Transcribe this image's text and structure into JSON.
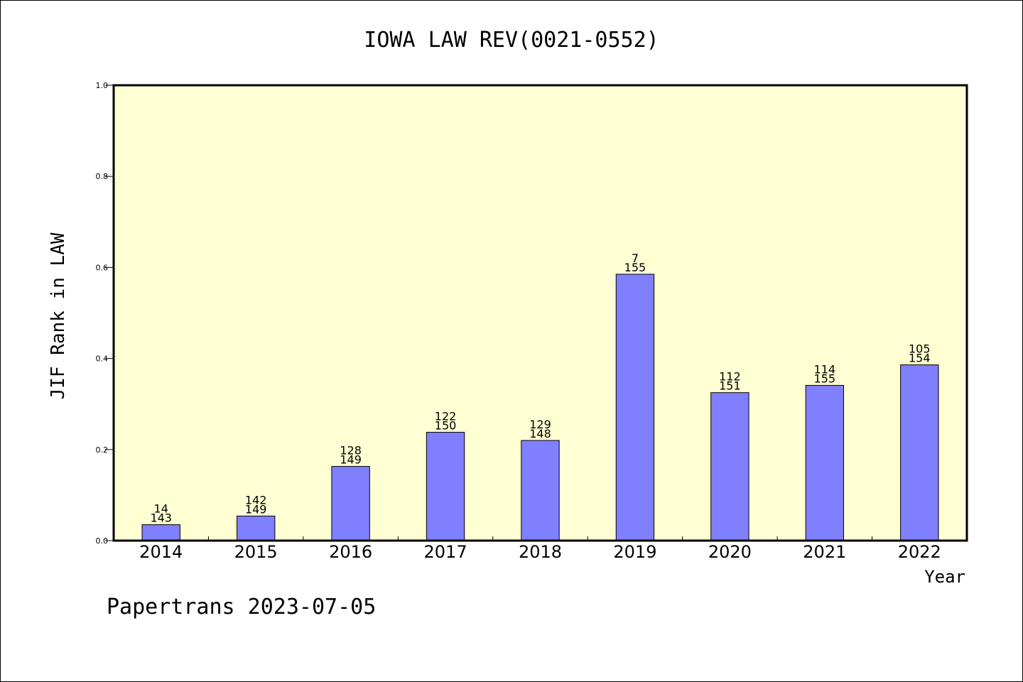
{
  "chart_data": {
    "type": "bar",
    "title": "IOWA LAW REV(0021-0552)",
    "xlabel": "Year",
    "ylabel": "JIF Rank in LAW",
    "ylim": [
      0,
      1.0
    ],
    "yticks": [
      "0.0",
      "0.2",
      "0.4",
      "0.6",
      "0.8",
      "1.0"
    ],
    "grid": false,
    "categories": [
      "2014",
      "2015",
      "2016",
      "2017",
      "2018",
      "2019",
      "2020",
      "2021",
      "2022"
    ],
    "values": [
      0.035,
      0.054,
      0.163,
      0.238,
      0.22,
      0.585,
      0.325,
      0.341,
      0.386
    ],
    "ranks": [
      "14",
      "142",
      "128",
      "122",
      "129",
      "7",
      "112",
      "114",
      "105"
    ],
    "totals": [
      "143",
      "149",
      "149",
      "150",
      "148",
      "155",
      "151",
      "155",
      "154"
    ],
    "colors": {
      "bar": "#8080ff",
      "plot_bg": "#ffffd4",
      "axis": "#000000"
    }
  },
  "footer": {
    "credit": "Papertrans 2023-07-05"
  }
}
